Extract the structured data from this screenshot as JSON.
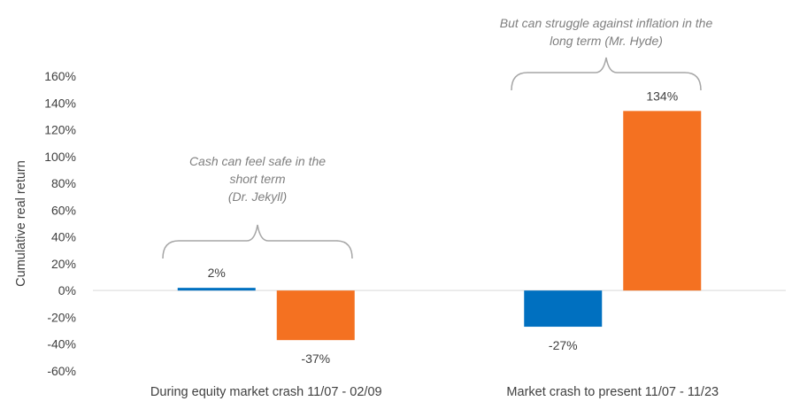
{
  "chart_data": {
    "type": "bar",
    "categories": [
      "During equity market crash 11/07 - 02/09",
      "Market crash to present 11/07 - 11/23"
    ],
    "series": [
      {
        "values": [
          2,
          -27
        ],
        "color": "#0070c0"
      },
      {
        "values": [
          -37,
          134
        ],
        "color": "#f47121"
      }
    ],
    "data_labels": [
      [
        "2%",
        "-27%"
      ],
      [
        "-37%",
        "134%"
      ]
    ],
    "ylabel": "Cumulative real return",
    "ylim": [
      -60,
      160
    ],
    "yticks": [
      160,
      140,
      120,
      100,
      80,
      60,
      40,
      20,
      0,
      -20,
      -40,
      -60
    ],
    "ytick_labels": [
      "160%",
      "140%",
      "120%",
      "100%",
      "80%",
      "60%",
      "40%",
      "20%",
      "0%",
      "-20%",
      "-40%",
      "-60%"
    ],
    "grid": false,
    "annotations": [
      {
        "lines": [
          "Cash can feel safe in the",
          "short term",
          "(Dr. Jekyll)"
        ],
        "category": 0
      },
      {
        "lines": [
          "But can struggle against inflation in the",
          "long term (Mr. Hyde)"
        ],
        "category": 1
      }
    ]
  }
}
